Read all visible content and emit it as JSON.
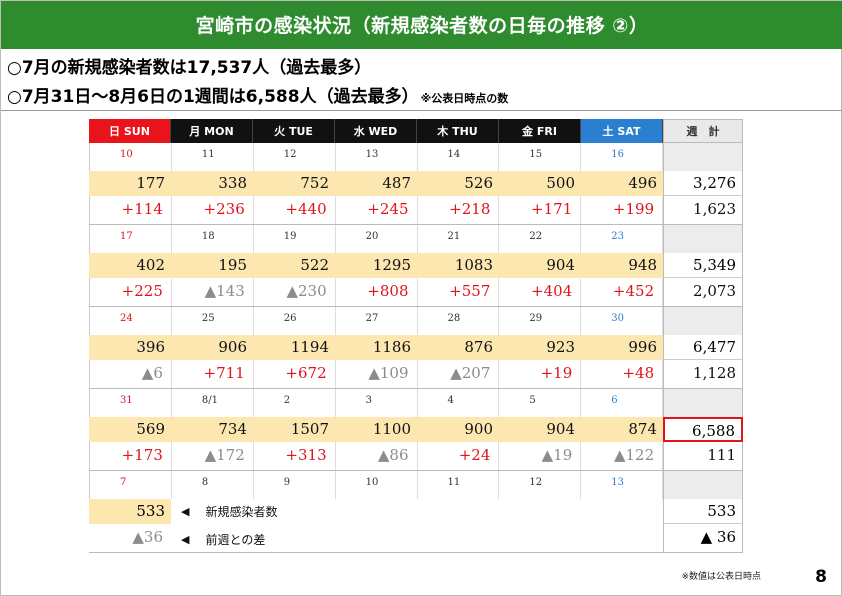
{
  "title": "宮崎市の感染状況（新規感染者数の日毎の推移 ②）",
  "summary": {
    "line1": "○7月の新規感染者数は17,537人（過去最多）",
    "line2": "○7月31日～8月6日の1週間は6,588人（過去最多）",
    "line2_note": "※公表日時点の数"
  },
  "header": [
    "日 SUN",
    "月 MON",
    "火 TUE",
    "水 WED",
    "木 THU",
    "金 FRI",
    "土 SAT",
    "週　計"
  ],
  "weeks": [
    {
      "dates": [
        "10",
        "11",
        "12",
        "13",
        "14",
        "15",
        "16"
      ],
      "counts": [
        "177",
        "338",
        "752",
        "487",
        "526",
        "500",
        "496"
      ],
      "diffs": [
        "+114",
        "+236",
        "+440",
        "+245",
        "+218",
        "+171",
        "+199"
      ],
      "diff_dir": [
        "up",
        "up",
        "up",
        "up",
        "up",
        "up",
        "up"
      ],
      "total": "3,276",
      "total_diff": "1,623"
    },
    {
      "dates": [
        "17",
        "18",
        "19",
        "20",
        "21",
        "22",
        "23"
      ],
      "counts": [
        "402",
        "195",
        "522",
        "1295",
        "1083",
        "904",
        "948"
      ],
      "diffs": [
        "+225",
        "▲143",
        "▲230",
        "+808",
        "+557",
        "+404",
        "+452"
      ],
      "diff_dir": [
        "up",
        "down",
        "down",
        "up",
        "up",
        "up",
        "up"
      ],
      "total": "5,349",
      "total_diff": "2,073"
    },
    {
      "dates": [
        "24",
        "25",
        "26",
        "27",
        "28",
        "29",
        "30"
      ],
      "counts": [
        "396",
        "906",
        "1194",
        "1186",
        "876",
        "923",
        "996"
      ],
      "diffs": [
        "▲6",
        "+711",
        "+672",
        "▲109",
        "▲207",
        "+19",
        "+48"
      ],
      "diff_dir": [
        "down",
        "up",
        "up",
        "down",
        "down",
        "up",
        "up"
      ],
      "total": "6,477",
      "total_diff": "1,128"
    },
    {
      "dates": [
        "31",
        "8/1",
        "2",
        "3",
        "4",
        "5",
        "6"
      ],
      "counts": [
        "569",
        "734",
        "1507",
        "1100",
        "900",
        "904",
        "874"
      ],
      "diffs": [
        "+173",
        "▲172",
        "+313",
        "▲86",
        "+24",
        "▲19",
        "▲122"
      ],
      "diff_dir": [
        "up",
        "down",
        "up",
        "down",
        "up",
        "down",
        "down"
      ],
      "total": "6,588",
      "total_diff": "111",
      "highlight": true
    }
  ],
  "last_week": {
    "dates": [
      "7",
      "8",
      "9",
      "10",
      "11",
      "12",
      "13"
    ],
    "count": "533",
    "diff": "▲36",
    "legend_count": "新規感染者数",
    "legend_diff": "前週との差",
    "legend_marker": "◀",
    "total": "533",
    "total_diff": "▲ 36"
  },
  "footnote": "※数値は公表日時点",
  "page_number": "8",
  "colors": {
    "title_bg": "#2e8b2e",
    "sunday": "#e8131b",
    "saturday": "#2a7fd0",
    "count_row": "#fde7b1",
    "increase": "#e0141c",
    "decrease": "#8c8c8c"
  }
}
